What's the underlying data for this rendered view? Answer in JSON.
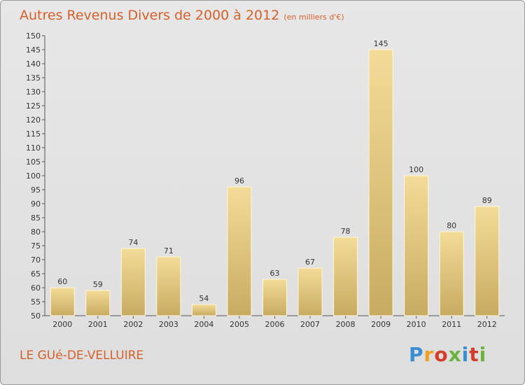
{
  "title": "Autres Revenus Divers de 2000 à 2012",
  "subtitle": "(en milliers d'€)",
  "town": "LE GUé-DE-VELLUIRE",
  "logo": {
    "text": "Proxiti",
    "colors": [
      "#3a8fd0",
      "#f0a020",
      "#d63c2a",
      "#6ab33c",
      "#3a8fd0",
      "#d63c2a",
      "#6ab33c"
    ]
  },
  "colors": {
    "title": "#d6602a",
    "bar_light": "#f3dc98",
    "bar_dark": "#c8ab62",
    "axis": "#555555"
  },
  "chart_data": {
    "type": "bar",
    "categories": [
      "2000",
      "2001",
      "2002",
      "2003",
      "2004",
      "2005",
      "2006",
      "2007",
      "2008",
      "2009",
      "2010",
      "2011",
      "2012"
    ],
    "values": [
      60,
      59,
      74,
      71,
      54,
      96,
      63,
      67,
      78,
      145,
      100,
      80,
      89
    ],
    "ylim": [
      50,
      150
    ],
    "yticks": [
      50,
      55,
      60,
      65,
      70,
      75,
      80,
      85,
      90,
      95,
      100,
      105,
      110,
      115,
      120,
      125,
      130,
      135,
      140,
      145,
      150
    ],
    "grid": false
  }
}
